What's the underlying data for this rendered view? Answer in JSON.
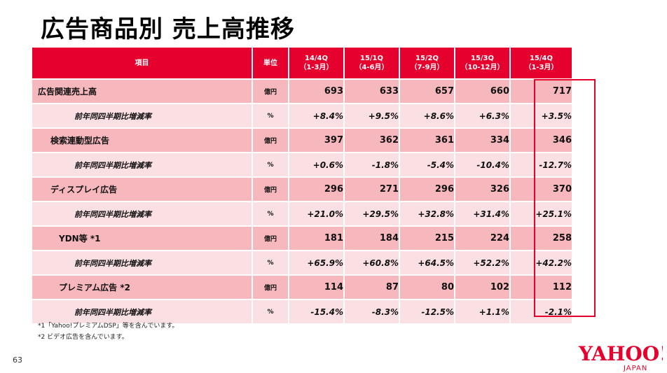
{
  "title": "広告商品別 売上高推移",
  "columns": [
    {
      "line1": "項目",
      "line2": ""
    },
    {
      "line1": "単位",
      "line2": ""
    },
    {
      "line1": "14/4Q",
      "line2": "（1-3月）"
    },
    {
      "line1": "15/1Q",
      "line2": "（4-6月）"
    },
    {
      "line1": "15/2Q",
      "line2": "（7-9月）"
    },
    {
      "line1": "15/3Q",
      "line2": "（10-12月）"
    },
    {
      "line1": "15/4Q",
      "line2": "（1-3月）"
    }
  ],
  "rows": [
    {
      "label": "広告関連売上高",
      "unit": "億円",
      "values": [
        "693",
        "633",
        "657",
        "660",
        "717"
      ]
    },
    {
      "label": "前年同四半期比増減率",
      "unit": "%",
      "values": [
        "+8.4%",
        "+9.5%",
        "+8.6%",
        "+6.3%",
        "+3.5%"
      ]
    },
    {
      "label": "検索連動型広告",
      "unit": "億円",
      "values": [
        "397",
        "362",
        "361",
        "334",
        "346"
      ]
    },
    {
      "label": "前年同四半期比増減率",
      "unit": "%",
      "values": [
        "+0.6%",
        "-1.8%",
        "-5.4%",
        "-10.4%",
        "-12.7%"
      ]
    },
    {
      "label": "ディスプレイ広告",
      "unit": "億円",
      "values": [
        "296",
        "271",
        "296",
        "326",
        "370"
      ]
    },
    {
      "label": "前年同四半期比増減率",
      "unit": "%",
      "values": [
        "+21.0%",
        "+29.5%",
        "+32.8%",
        "+31.4%",
        "+25.1%"
      ]
    },
    {
      "label": "YDN等 *1",
      "unit": "億円",
      "values": [
        "181",
        "184",
        "215",
        "224",
        "258"
      ]
    },
    {
      "label": "前年同四半期比増減率",
      "unit": "%",
      "values": [
        "+65.9%",
        "+60.8%",
        "+64.5%",
        "+52.2%",
        "+42.2%"
      ]
    },
    {
      "label": "プレミアム広告 *2",
      "unit": "億円",
      "values": [
        "114",
        "87",
        "80",
        "102",
        "112"
      ]
    },
    {
      "label": "前年同四半期比増減率",
      "unit": "%",
      "values": [
        "-15.4%",
        "-8.3%",
        "-12.5%",
        "+1.1%",
        "-2.1%"
      ]
    }
  ],
  "notes": [
    "*1「Yahoo!プレミアムDSP」等を含んでいます。",
    "*2 ビデオ広告を含んでいます。"
  ],
  "page_number": "63",
  "logo": {
    "main": "YAHOO!",
    "sub": "JAPAN"
  },
  "colors": {
    "accent": "#e5002d",
    "row_main": "#f6b7bd",
    "row_sub": "#fbe0e3"
  }
}
